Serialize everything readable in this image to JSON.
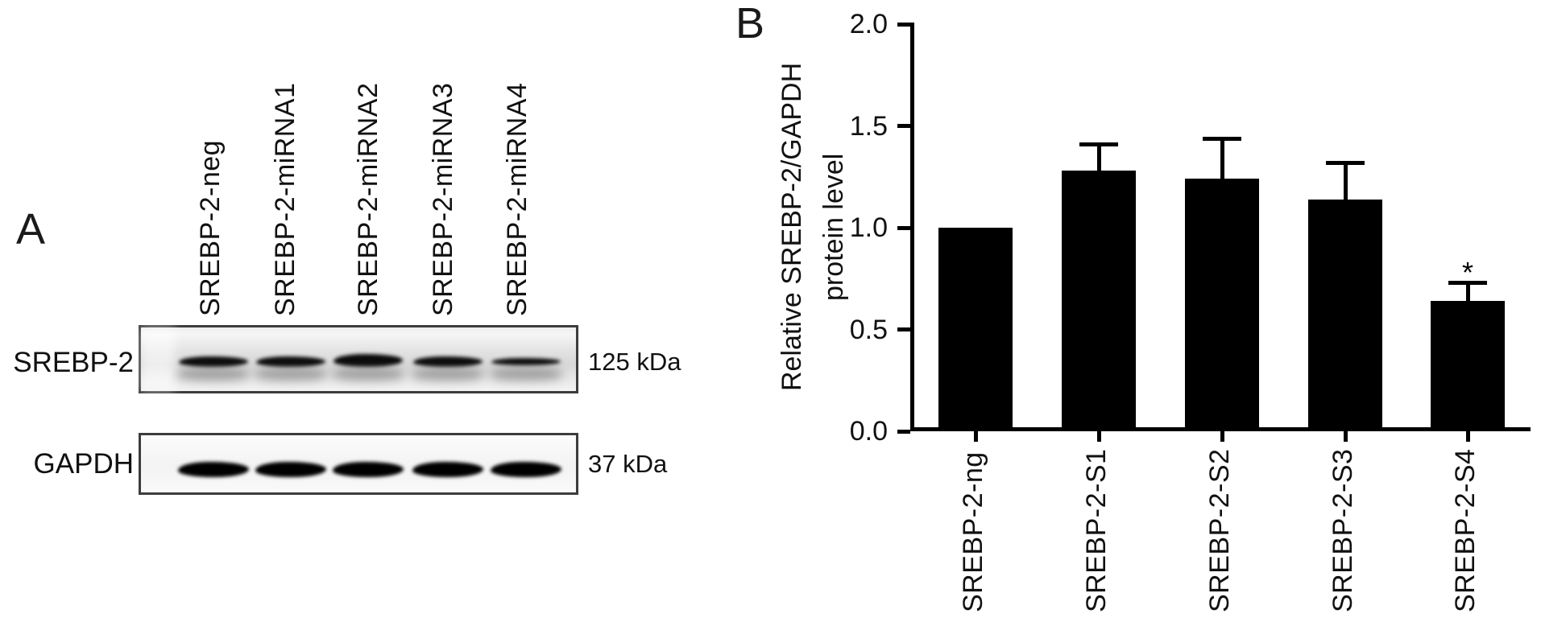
{
  "panel_a": {
    "label": "A",
    "lane_labels": [
      "SREBP-2-neg",
      "SREBP-2-miRNA1",
      "SREBP-2-miRNA2",
      "SREBP-2-miRNA3",
      "SREBP-2-miRNA4"
    ],
    "blots": [
      {
        "protein": "SREBP-2",
        "molecular_weight": "125 kDa"
      },
      {
        "protein": "GAPDH",
        "molecular_weight": "37 kDa"
      }
    ]
  },
  "panel_b": {
    "label": "B"
  },
  "chart_data": {
    "type": "bar",
    "categories": [
      "SREBP-2-ng",
      "SREBP-2-S1",
      "SREBP-2-S2",
      "SREBP-2-S3",
      "SREBP-2-S4"
    ],
    "values": [
      1.0,
      1.28,
      1.24,
      1.14,
      0.64
    ],
    "errors_plus": [
      0,
      0.13,
      0.2,
      0.18,
      0.09
    ],
    "significance": [
      "",
      "",
      "",
      "",
      "*"
    ],
    "title": "",
    "xlabel": "",
    "ylabel": "Relative SREBP-2/GAPDH protein level",
    "ylabel_lines": [
      "Relative SREBP-2/GAPDH",
      "protein level"
    ],
    "ylim": [
      0,
      2.0
    ],
    "ytick_labels": [
      "0.0",
      "0.5",
      "1.0",
      "1.5",
      "2.0"
    ],
    "bar_color": "#000000",
    "error_bars": "upper only, with caps",
    "grid": false,
    "legend": "none"
  }
}
